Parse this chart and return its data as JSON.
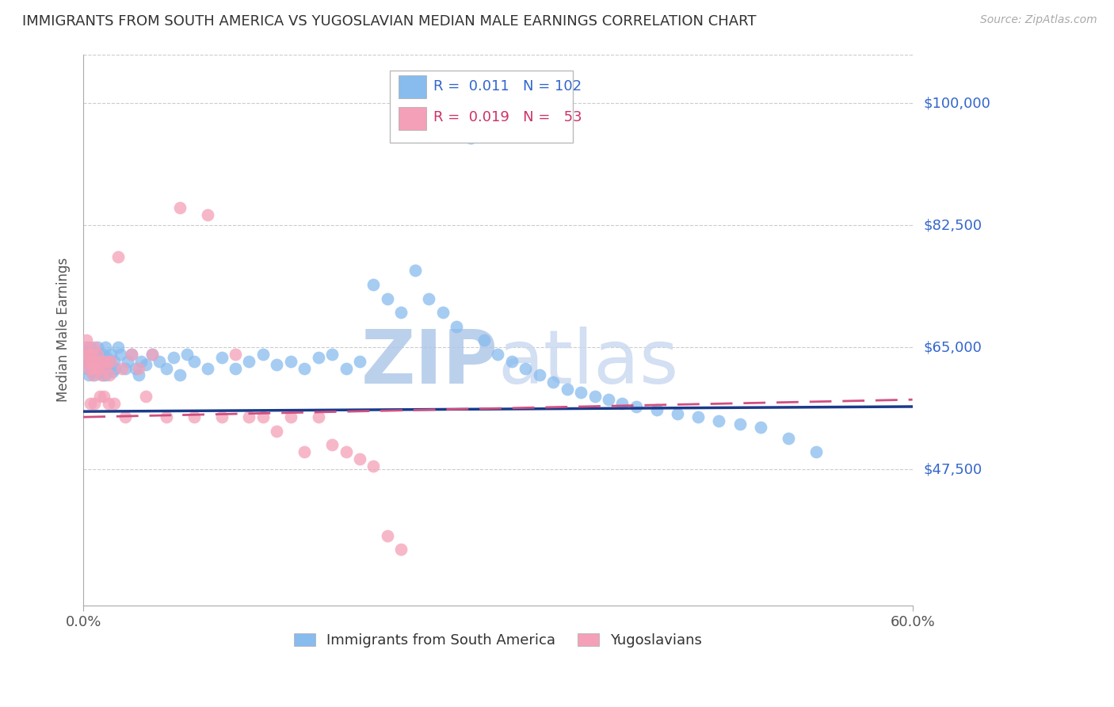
{
  "title": "IMMIGRANTS FROM SOUTH AMERICA VS YUGOSLAVIAN MEDIAN MALE EARNINGS CORRELATION CHART",
  "source": "Source: ZipAtlas.com",
  "ylabel": "Median Male Earnings",
  "xlim": [
    0.0,
    0.6
  ],
  "ylim": [
    28000,
    107000
  ],
  "yticks": [
    47500,
    65000,
    82500,
    100000
  ],
  "ytick_labels": [
    "$47,500",
    "$65,000",
    "$82,500",
    "$100,000"
  ],
  "xtick_labels": [
    "0.0%",
    "60.0%"
  ],
  "blue_color": "#88bbee",
  "pink_color": "#f4a0b8",
  "blue_line_color": "#1a3a8a",
  "pink_line_color": "#d05080",
  "right_label_color": "#3366cc",
  "watermark_color": "#ccddf5",
  "grid_color": "#cccccc",
  "background_color": "#ffffff",
  "figsize": [
    14.06,
    8.92
  ],
  "dpi": 100,
  "blue_x": [
    0.001,
    0.002,
    0.002,
    0.003,
    0.003,
    0.003,
    0.004,
    0.004,
    0.004,
    0.005,
    0.005,
    0.005,
    0.006,
    0.006,
    0.006,
    0.007,
    0.007,
    0.007,
    0.008,
    0.008,
    0.008,
    0.009,
    0.009,
    0.01,
    0.01,
    0.01,
    0.011,
    0.011,
    0.012,
    0.012,
    0.013,
    0.013,
    0.014,
    0.014,
    0.015,
    0.015,
    0.016,
    0.016,
    0.017,
    0.017,
    0.018,
    0.019,
    0.02,
    0.021,
    0.022,
    0.023,
    0.025,
    0.027,
    0.03,
    0.032,
    0.035,
    0.038,
    0.04,
    0.042,
    0.045,
    0.05,
    0.055,
    0.06,
    0.065,
    0.07,
    0.075,
    0.08,
    0.09,
    0.1,
    0.11,
    0.12,
    0.13,
    0.14,
    0.15,
    0.16,
    0.17,
    0.18,
    0.19,
    0.2,
    0.21,
    0.22,
    0.23,
    0.24,
    0.25,
    0.26,
    0.27,
    0.28,
    0.29,
    0.3,
    0.31,
    0.32,
    0.33,
    0.34,
    0.35,
    0.36,
    0.37,
    0.38,
    0.39,
    0.4,
    0.415,
    0.43,
    0.445,
    0.46,
    0.475,
    0.49,
    0.51,
    0.53
  ],
  "blue_y": [
    64000,
    63000,
    65000,
    62000,
    64500,
    63500,
    61000,
    63000,
    64000,
    62500,
    63000,
    65000,
    64000,
    62000,
    63500,
    64000,
    61500,
    63000,
    62500,
    64000,
    61000,
    63500,
    62000,
    65000,
    63000,
    64000,
    62000,
    63500,
    61500,
    64000,
    62500,
    63000,
    61000,
    64000,
    62000,
    63000,
    65000,
    61000,
    62500,
    63500,
    62000,
    63000,
    64000,
    61500,
    63000,
    62000,
    65000,
    64000,
    62000,
    63000,
    64000,
    62000,
    61000,
    63000,
    62500,
    64000,
    63000,
    62000,
    63500,
    61000,
    64000,
    63000,
    62000,
    63500,
    62000,
    63000,
    64000,
    62500,
    63000,
    62000,
    63500,
    64000,
    62000,
    63000,
    74000,
    72000,
    70000,
    76000,
    72000,
    70000,
    68000,
    95000,
    66000,
    64000,
    63000,
    62000,
    61000,
    60000,
    59000,
    58500,
    58000,
    57500,
    57000,
    56500,
    56000,
    55500,
    55000,
    54500,
    54000,
    53500,
    52000,
    50000
  ],
  "pink_x": [
    0.001,
    0.002,
    0.003,
    0.003,
    0.004,
    0.004,
    0.005,
    0.005,
    0.006,
    0.006,
    0.007,
    0.007,
    0.008,
    0.008,
    0.009,
    0.01,
    0.01,
    0.011,
    0.012,
    0.013,
    0.014,
    0.015,
    0.016,
    0.017,
    0.018,
    0.019,
    0.02,
    0.022,
    0.025,
    0.028,
    0.03,
    0.035,
    0.04,
    0.045,
    0.05,
    0.06,
    0.07,
    0.08,
    0.09,
    0.1,
    0.11,
    0.12,
    0.13,
    0.14,
    0.15,
    0.16,
    0.17,
    0.18,
    0.19,
    0.2,
    0.21,
    0.22,
    0.23
  ],
  "pink_y": [
    64000,
    66000,
    63000,
    65000,
    62000,
    64000,
    57000,
    63000,
    62000,
    64000,
    61000,
    63000,
    57000,
    65000,
    62000,
    64000,
    63000,
    62000,
    58000,
    61000,
    63000,
    58000,
    62000,
    63000,
    57000,
    61000,
    63000,
    57000,
    78000,
    62000,
    55000,
    64000,
    62000,
    58000,
    64000,
    55000,
    85000,
    55000,
    84000,
    55000,
    64000,
    55000,
    55000,
    53000,
    55000,
    50000,
    55000,
    51000,
    50000,
    49000,
    48000,
    38000,
    36000
  ],
  "blue_trend_x": [
    0.0,
    0.6
  ],
  "blue_trend_y": [
    55800,
    56500
  ],
  "pink_trend_x": [
    0.0,
    0.6
  ],
  "pink_trend_y": [
    55000,
    57500
  ]
}
